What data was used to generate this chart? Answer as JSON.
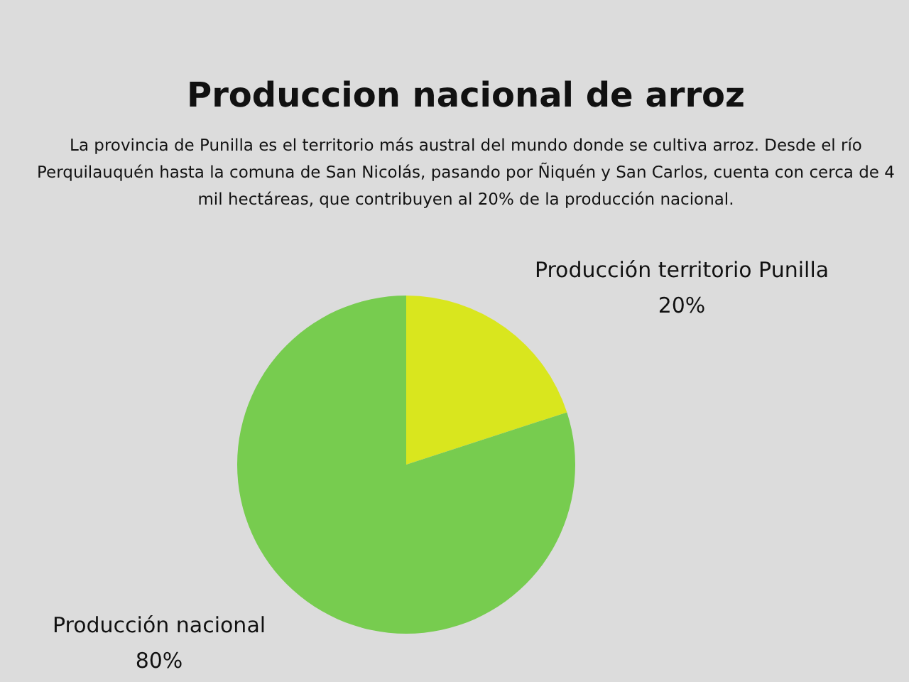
{
  "chart_data": {
    "type": "pie",
    "title": "Produccion nacional de arroz",
    "subtitle": "La provincia de Punilla es el territorio más austral del mundo donde se cultiva arroz. Desde el río Perquilauquén hasta la comuna de San Nicolás, pasando por Ñiquén y San Carlos, cuenta con cerca de 4 mil hectáreas, que contribuyen al 20% de la producción nacional.",
    "categories": [
      "Producción territorio Punilla",
      "Producción nacional"
    ],
    "values": [
      20,
      80
    ],
    "value_labels": [
      "20%",
      "80%"
    ],
    "colors": [
      "#d9e61e",
      "#77cc4f"
    ]
  }
}
